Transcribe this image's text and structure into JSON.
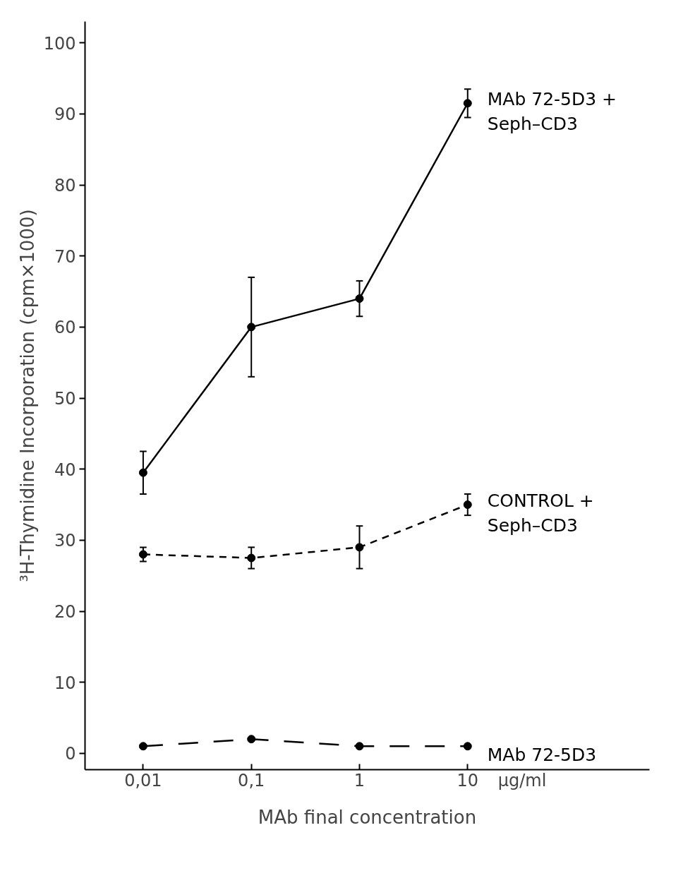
{
  "chart_data": {
    "type": "line",
    "xlabel": "MAb final concentration",
    "ylabel": "³H-Thymidine Incorporation (cpm×1000)",
    "log": "x",
    "x": [
      0.01,
      0.1,
      1,
      10
    ],
    "xlim": [
      0.0029,
      480
    ],
    "xticks": [
      {
        "value": 0.01,
        "label": "0,01"
      },
      {
        "value": 0.1,
        "label": "0,1"
      },
      1,
      10
    ],
    "ylim": [
      -2.3,
      103
    ],
    "yticks": [
      0,
      10,
      20,
      30,
      40,
      50,
      60,
      70,
      80,
      90,
      100
    ],
    "grid": false,
    "legend": false,
    "marker": "circle",
    "annotations": [
      "µg/ml"
    ],
    "series": [
      {
        "name": "MAb 72-5D3 + Seph–CD3",
        "color": "#000000",
        "line_style": "solid",
        "values": [
          39.5,
          60,
          64,
          91.5
        ],
        "errors": [
          3,
          7,
          2.5,
          2
        ]
      },
      {
        "name": "CONTROL + Seph–CD3",
        "color": "#000000",
        "line_style": "dashed",
        "values": [
          28,
          27.5,
          29,
          35
        ],
        "errors": [
          1,
          1.5,
          3,
          1.5
        ]
      },
      {
        "name": "MAb 72-5D3",
        "color": "#000000",
        "line_style": "dashed",
        "values": [
          1,
          2,
          1,
          1
        ]
      }
    ]
  }
}
